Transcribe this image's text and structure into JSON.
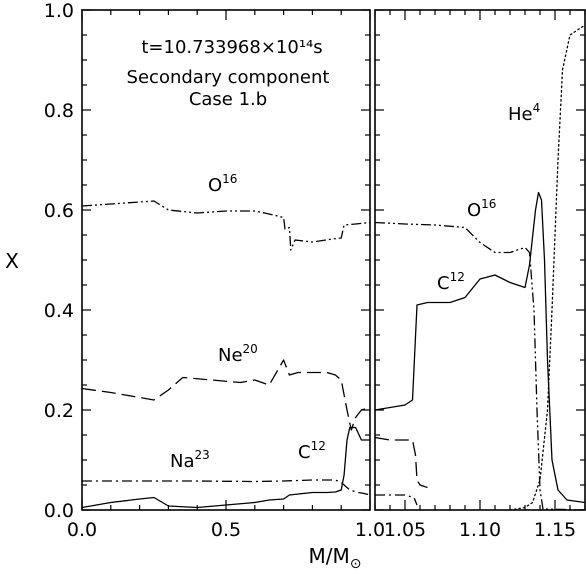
{
  "chart_data": {
    "type": "line",
    "annotations": {
      "time": "t=10.733968×10¹⁴s",
      "component": "Secondary component",
      "case": "Case 1.b"
    },
    "ylabel": "X",
    "xlabel": "M/M",
    "xlabel_symbol": "⊙",
    "ylim": [
      0.0,
      1.0
    ],
    "y_ticks": [
      "0.0",
      "0.2",
      "0.4",
      "0.6",
      "0.8",
      "1.0"
    ],
    "panels": [
      {
        "name": "left",
        "xlim": [
          0.0,
          1.0
        ],
        "x_ticks": [
          "0.0",
          "0.5",
          "1.0"
        ],
        "series": [
          {
            "label": "O16",
            "base": "O",
            "sup": "16",
            "style": "dashdotdot",
            "points": [
              [
                0,
                0.608
              ],
              [
                0.1,
                0.612
              ],
              [
                0.25,
                0.618
              ],
              [
                0.3,
                0.6
              ],
              [
                0.4,
                0.594
              ],
              [
                0.5,
                0.598
              ],
              [
                0.6,
                0.598
              ],
              [
                0.65,
                0.592
              ],
              [
                0.7,
                0.585
              ],
              [
                0.705,
                0.562
              ],
              [
                0.72,
                0.565
              ],
              [
                0.725,
                0.52
              ],
              [
                0.74,
                0.54
              ],
              [
                0.8,
                0.536
              ],
              [
                0.87,
                0.542
              ],
              [
                0.9,
                0.544
              ],
              [
                0.91,
                0.57
              ],
              [
                0.95,
                0.572
              ],
              [
                1.0,
                0.575
              ]
            ]
          },
          {
            "label": "Ne20",
            "base": "Ne",
            "sup": "20",
            "style": "longdash",
            "points": [
              [
                0,
                0.243
              ],
              [
                0.1,
                0.235
              ],
              [
                0.25,
                0.22
              ],
              [
                0.3,
                0.24
              ],
              [
                0.35,
                0.265
              ],
              [
                0.45,
                0.26
              ],
              [
                0.55,
                0.255
              ],
              [
                0.6,
                0.26
              ],
              [
                0.65,
                0.25
              ],
              [
                0.7,
                0.3
              ],
              [
                0.72,
                0.27
              ],
              [
                0.75,
                0.275
              ],
              [
                0.8,
                0.275
              ],
              [
                0.85,
                0.275
              ],
              [
                0.88,
                0.27
              ],
              [
                0.9,
                0.26
              ],
              [
                0.92,
                0.2
              ],
              [
                0.935,
                0.16
              ],
              [
                0.95,
                0.185
              ],
              [
                0.97,
                0.2
              ],
              [
                1.0,
                0.205
              ]
            ]
          },
          {
            "label": "Na23",
            "base": "Na",
            "sup": "23",
            "style": "dashdot",
            "points": [
              [
                0,
                0.058
              ],
              [
                0.2,
                0.058
              ],
              [
                0.4,
                0.058
              ],
              [
                0.6,
                0.057
              ],
              [
                0.7,
                0.058
              ],
              [
                0.8,
                0.06
              ],
              [
                0.88,
                0.06
              ],
              [
                0.9,
                0.055
              ],
              [
                0.93,
                0.04
              ],
              [
                0.96,
                0.035
              ],
              [
                0.98,
                0.033
              ],
              [
                1.0,
                0.03
              ]
            ]
          },
          {
            "label": "C12",
            "base": "C",
            "sup": "12",
            "style": "solid",
            "points": [
              [
                0,
                0.005
              ],
              [
                0.1,
                0.015
              ],
              [
                0.2,
                0.022
              ],
              [
                0.25,
                0.025
              ],
              [
                0.3,
                0.008
              ],
              [
                0.4,
                0.005
              ],
              [
                0.5,
                0.01
              ],
              [
                0.6,
                0.015
              ],
              [
                0.65,
                0.02
              ],
              [
                0.7,
                0.022
              ],
              [
                0.72,
                0.03
              ],
              [
                0.8,
                0.035
              ],
              [
                0.85,
                0.035
              ],
              [
                0.88,
                0.036
              ],
              [
                0.9,
                0.04
              ],
              [
                0.91,
                0.07
              ],
              [
                0.92,
                0.14
              ],
              [
                0.93,
                0.165
              ],
              [
                0.95,
                0.165
              ],
              [
                0.97,
                0.14
              ],
              [
                1.0,
                0.14
              ]
            ]
          }
        ]
      },
      {
        "name": "right",
        "xlim": [
          1.03,
          1.17
        ],
        "x_ticks": [
          "1.05",
          "1.10",
          "1.15"
        ],
        "series": [
          {
            "label": "O16",
            "base": "O",
            "sup": "16",
            "style": "dashdotdot",
            "points": [
              [
                1.03,
                0.575
              ],
              [
                1.05,
                0.572
              ],
              [
                1.07,
                0.57
              ],
              [
                1.09,
                0.565
              ],
              [
                1.1,
                0.535
              ],
              [
                1.11,
                0.515
              ],
              [
                1.12,
                0.515
              ],
              [
                1.13,
                0.525
              ],
              [
                1.133,
                0.515
              ],
              [
                1.136,
                0.4
              ],
              [
                1.138,
                0.2
              ],
              [
                1.14,
                0.04
              ],
              [
                1.142,
                0.002
              ],
              [
                1.17,
                0
              ]
            ]
          },
          {
            "label": "C12",
            "base": "C",
            "sup": "12",
            "style": "solid",
            "points": [
              [
                1.03,
                0.2
              ],
              [
                1.05,
                0.21
              ],
              [
                1.055,
                0.22
              ],
              [
                1.058,
                0.41
              ],
              [
                1.065,
                0.415
              ],
              [
                1.08,
                0.415
              ],
              [
                1.09,
                0.425
              ],
              [
                1.1,
                0.462
              ],
              [
                1.11,
                0.47
              ],
              [
                1.12,
                0.455
              ],
              [
                1.13,
                0.445
              ],
              [
                1.133,
                0.49
              ],
              [
                1.137,
                0.6
              ],
              [
                1.139,
                0.635
              ],
              [
                1.141,
                0.62
              ],
              [
                1.143,
                0.5
              ],
              [
                1.145,
                0.3
              ],
              [
                1.148,
                0.1
              ],
              [
                1.152,
                0.04
              ],
              [
                1.158,
                0.02
              ],
              [
                1.17,
                0.015
              ]
            ]
          },
          {
            "label": "Ne20",
            "base": "Ne",
            "sup": "20",
            "style": "longdash",
            "points": [
              [
                1.03,
                0.145
              ],
              [
                1.04,
                0.14
              ],
              [
                1.05,
                0.14
              ],
              [
                1.055,
                0.14
              ],
              [
                1.057,
                0.11
              ],
              [
                1.058,
                0.06
              ],
              [
                1.06,
                0.05
              ],
              [
                1.065,
                0.045
              ]
            ]
          },
          {
            "label": "Na23",
            "base": "Na",
            "sup": "23",
            "style": "dashdot",
            "points": [
              [
                1.03,
                0.03
              ],
              [
                1.05,
                0.03
              ],
              [
                1.056,
                0.025
              ],
              [
                1.058,
                0.01
              ]
            ]
          },
          {
            "label": "He4",
            "base": "He",
            "sup": "4",
            "style": "dotted",
            "points": [
              [
                1.12,
                0
              ],
              [
                1.13,
                0.005
              ],
              [
                1.135,
                0.015
              ],
              [
                1.14,
                0.06
              ],
              [
                1.145,
                0.2
              ],
              [
                1.148,
                0.4
              ],
              [
                1.152,
                0.7
              ],
              [
                1.155,
                0.88
              ],
              [
                1.16,
                0.95
              ],
              [
                1.17,
                0.97
              ]
            ]
          }
        ]
      }
    ]
  }
}
